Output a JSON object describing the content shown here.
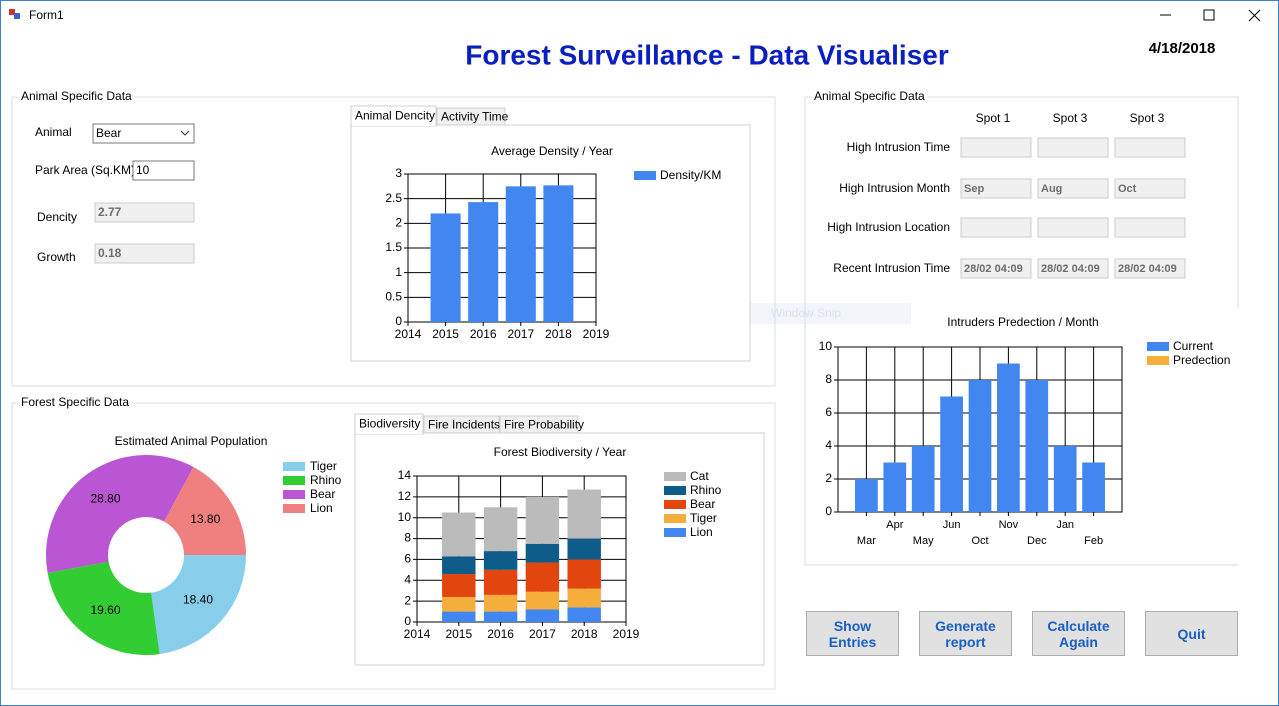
{
  "window": {
    "title": "Form1"
  },
  "header": {
    "title": "Forest Surveillance - Data Visualiser",
    "date": "4/18/2018"
  },
  "animal_panel": {
    "title": "Animal Specific Data",
    "fields": [
      {
        "label": "Animal",
        "value": "Bear"
      },
      {
        "label": "Park Area (Sq.KM)",
        "value": "10"
      },
      {
        "label": "Dencity",
        "value": "2.77"
      },
      {
        "label": "Growth",
        "value": "0.18"
      }
    ],
    "tabs": [
      "Animal Dencity",
      "Activity Time"
    ]
  },
  "forest_panel": {
    "title": "Forest Specific Data",
    "tabs": [
      "Biodiversity",
      "Fire Incidents",
      "Fire Probability"
    ]
  },
  "intrusion_panel": {
    "title": "Animal Specific Data",
    "columns": [
      "Spot 1",
      "Spot 3",
      "Spot 3"
    ],
    "rows": [
      {
        "label": "High Intrusion Time"
      },
      {
        "label": "High Intrusion Month",
        "values": [
          "Sep",
          "Aug",
          "Oct"
        ]
      },
      {
        "label": "High Intrusion Location"
      },
      {
        "label": "Recent Intrusion Time",
        "values": [
          "28/02 04:09",
          "28/02 04:09",
          "28/02 04:09"
        ]
      }
    ]
  },
  "buttons": [
    "Show Entries",
    "Generate report",
    "Calculate Again",
    "Quit"
  ],
  "overlay": "Window Snip",
  "chart_data": [
    {
      "type": "bar",
      "title": "Average Density / Year",
      "x": [
        2015,
        2016,
        2017,
        2018
      ],
      "series": [
        {
          "name": "Density/KM",
          "color": "#4287f0",
          "values": [
            2.2,
            2.43,
            2.75,
            2.77
          ]
        }
      ],
      "xlim": [
        2014,
        2019
      ],
      "xticks": [
        2014,
        2015,
        2016,
        2017,
        2018,
        2019
      ],
      "ylim": [
        0,
        3
      ],
      "yticks": [
        0,
        0.5,
        1,
        1.5,
        2,
        2.5,
        3
      ],
      "grid": true,
      "legend": "right"
    },
    {
      "type": "bar",
      "title": "Intruders Predection / Month",
      "categories": [
        "Mar",
        "Apr",
        "May",
        "Jun",
        "Oct",
        "Nov",
        "Dec",
        "Jan",
        "Feb"
      ],
      "series": [
        {
          "name": "Current",
          "color": "#4287f0",
          "values": [
            2,
            3,
            4,
            7,
            8,
            9,
            8,
            4,
            3
          ]
        },
        {
          "name": "Predection",
          "color": "#f5ad3c",
          "values": [
            null,
            null,
            null,
            null,
            null,
            null,
            null,
            null,
            null
          ]
        }
      ],
      "ylim": [
        0,
        10
      ],
      "yticks": [
        0,
        2,
        4,
        6,
        8,
        10
      ],
      "grid": true,
      "legend": "right"
    },
    {
      "type": "pie",
      "donut": true,
      "title": "Estimated Animal Population",
      "categories": [
        "Tiger",
        "Rhino",
        "Bear",
        "Lion"
      ],
      "values": [
        18.4,
        19.6,
        28.8,
        13.8
      ],
      "value_labels": [
        "18.40",
        "19.60",
        "28.80",
        "13.80"
      ],
      "colors": [
        "#87ceeb",
        "#32cd32",
        "#ba55d3",
        "#f08080"
      ],
      "legend": "right"
    },
    {
      "type": "bar",
      "stacked": true,
      "title": "Forest Biodiversity / Year",
      "x": [
        2015,
        2016,
        2017,
        2018
      ],
      "series": [
        {
          "name": "Lion",
          "color": "#4287f0",
          "values": [
            1.0,
            1.0,
            1.2,
            1.4
          ]
        },
        {
          "name": "Tiger",
          "color": "#f5ad3c",
          "values": [
            1.4,
            1.6,
            1.7,
            1.8
          ]
        },
        {
          "name": "Bear",
          "color": "#e2450e",
          "values": [
            2.2,
            2.4,
            2.8,
            2.8
          ]
        },
        {
          "name": "Rhino",
          "color": "#0e5c8a",
          "values": [
            1.7,
            1.8,
            1.8,
            2.0
          ]
        },
        {
          "name": "Cat",
          "color": "#bbbbbb",
          "values": [
            4.2,
            4.2,
            4.5,
            4.7
          ]
        }
      ],
      "xlim": [
        2014,
        2019
      ],
      "xticks": [
        2014,
        2015,
        2016,
        2017,
        2018,
        2019
      ],
      "ylim": [
        0,
        14
      ],
      "yticks": [
        0,
        2,
        4,
        6,
        8,
        10,
        12,
        14
      ],
      "grid": true,
      "legend": "right"
    }
  ]
}
